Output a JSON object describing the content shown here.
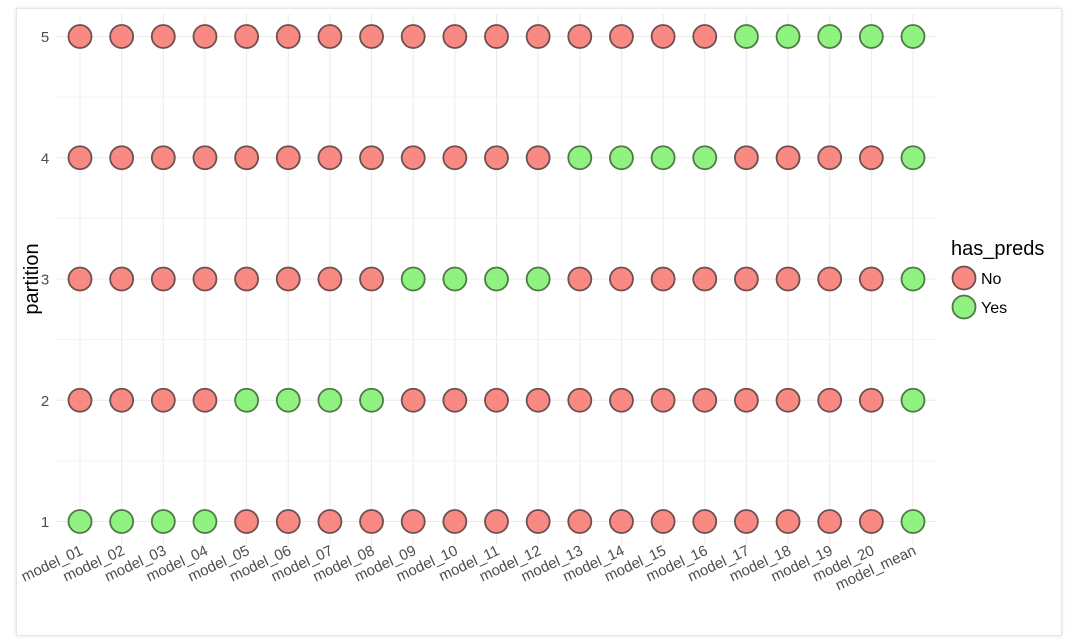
{
  "chart_data": {
    "type": "scatter",
    "title": "",
    "xlabel": "",
    "ylabel": "partition",
    "categories": [
      "model_01",
      "model_02",
      "model_03",
      "model_04",
      "model_05",
      "model_06",
      "model_07",
      "model_08",
      "model_09",
      "model_10",
      "model_11",
      "model_12",
      "model_13",
      "model_14",
      "model_15",
      "model_16",
      "model_17",
      "model_18",
      "model_19",
      "model_20",
      "model_mean"
    ],
    "partitions": [
      "1",
      "2",
      "3",
      "4",
      "5"
    ],
    "grid": true,
    "legend": {
      "title": "has_preds",
      "placement": "right",
      "entries": [
        {
          "label": "No",
          "color": "#f8766d"
        },
        {
          "label": "Yes",
          "color": "#7cf06a"
        }
      ]
    },
    "has_preds": {
      "1": [
        "Yes",
        "Yes",
        "Yes",
        "Yes",
        "No",
        "No",
        "No",
        "No",
        "No",
        "No",
        "No",
        "No",
        "No",
        "No",
        "No",
        "No",
        "No",
        "No",
        "No",
        "No",
        "Yes"
      ],
      "2": [
        "No",
        "No",
        "No",
        "No",
        "Yes",
        "Yes",
        "Yes",
        "Yes",
        "No",
        "No",
        "No",
        "No",
        "No",
        "No",
        "No",
        "No",
        "No",
        "No",
        "No",
        "No",
        "Yes"
      ],
      "3": [
        "No",
        "No",
        "No",
        "No",
        "No",
        "No",
        "No",
        "No",
        "Yes",
        "Yes",
        "Yes",
        "Yes",
        "No",
        "No",
        "No",
        "No",
        "No",
        "No",
        "No",
        "No",
        "Yes"
      ],
      "4": [
        "No",
        "No",
        "No",
        "No",
        "No",
        "No",
        "No",
        "No",
        "No",
        "No",
        "No",
        "No",
        "Yes",
        "Yes",
        "Yes",
        "Yes",
        "No",
        "No",
        "No",
        "No",
        "Yes"
      ],
      "5": [
        "No",
        "No",
        "No",
        "No",
        "No",
        "No",
        "No",
        "No",
        "No",
        "No",
        "No",
        "No",
        "No",
        "No",
        "No",
        "No",
        "Yes",
        "Yes",
        "Yes",
        "Yes",
        "Yes"
      ]
    }
  }
}
